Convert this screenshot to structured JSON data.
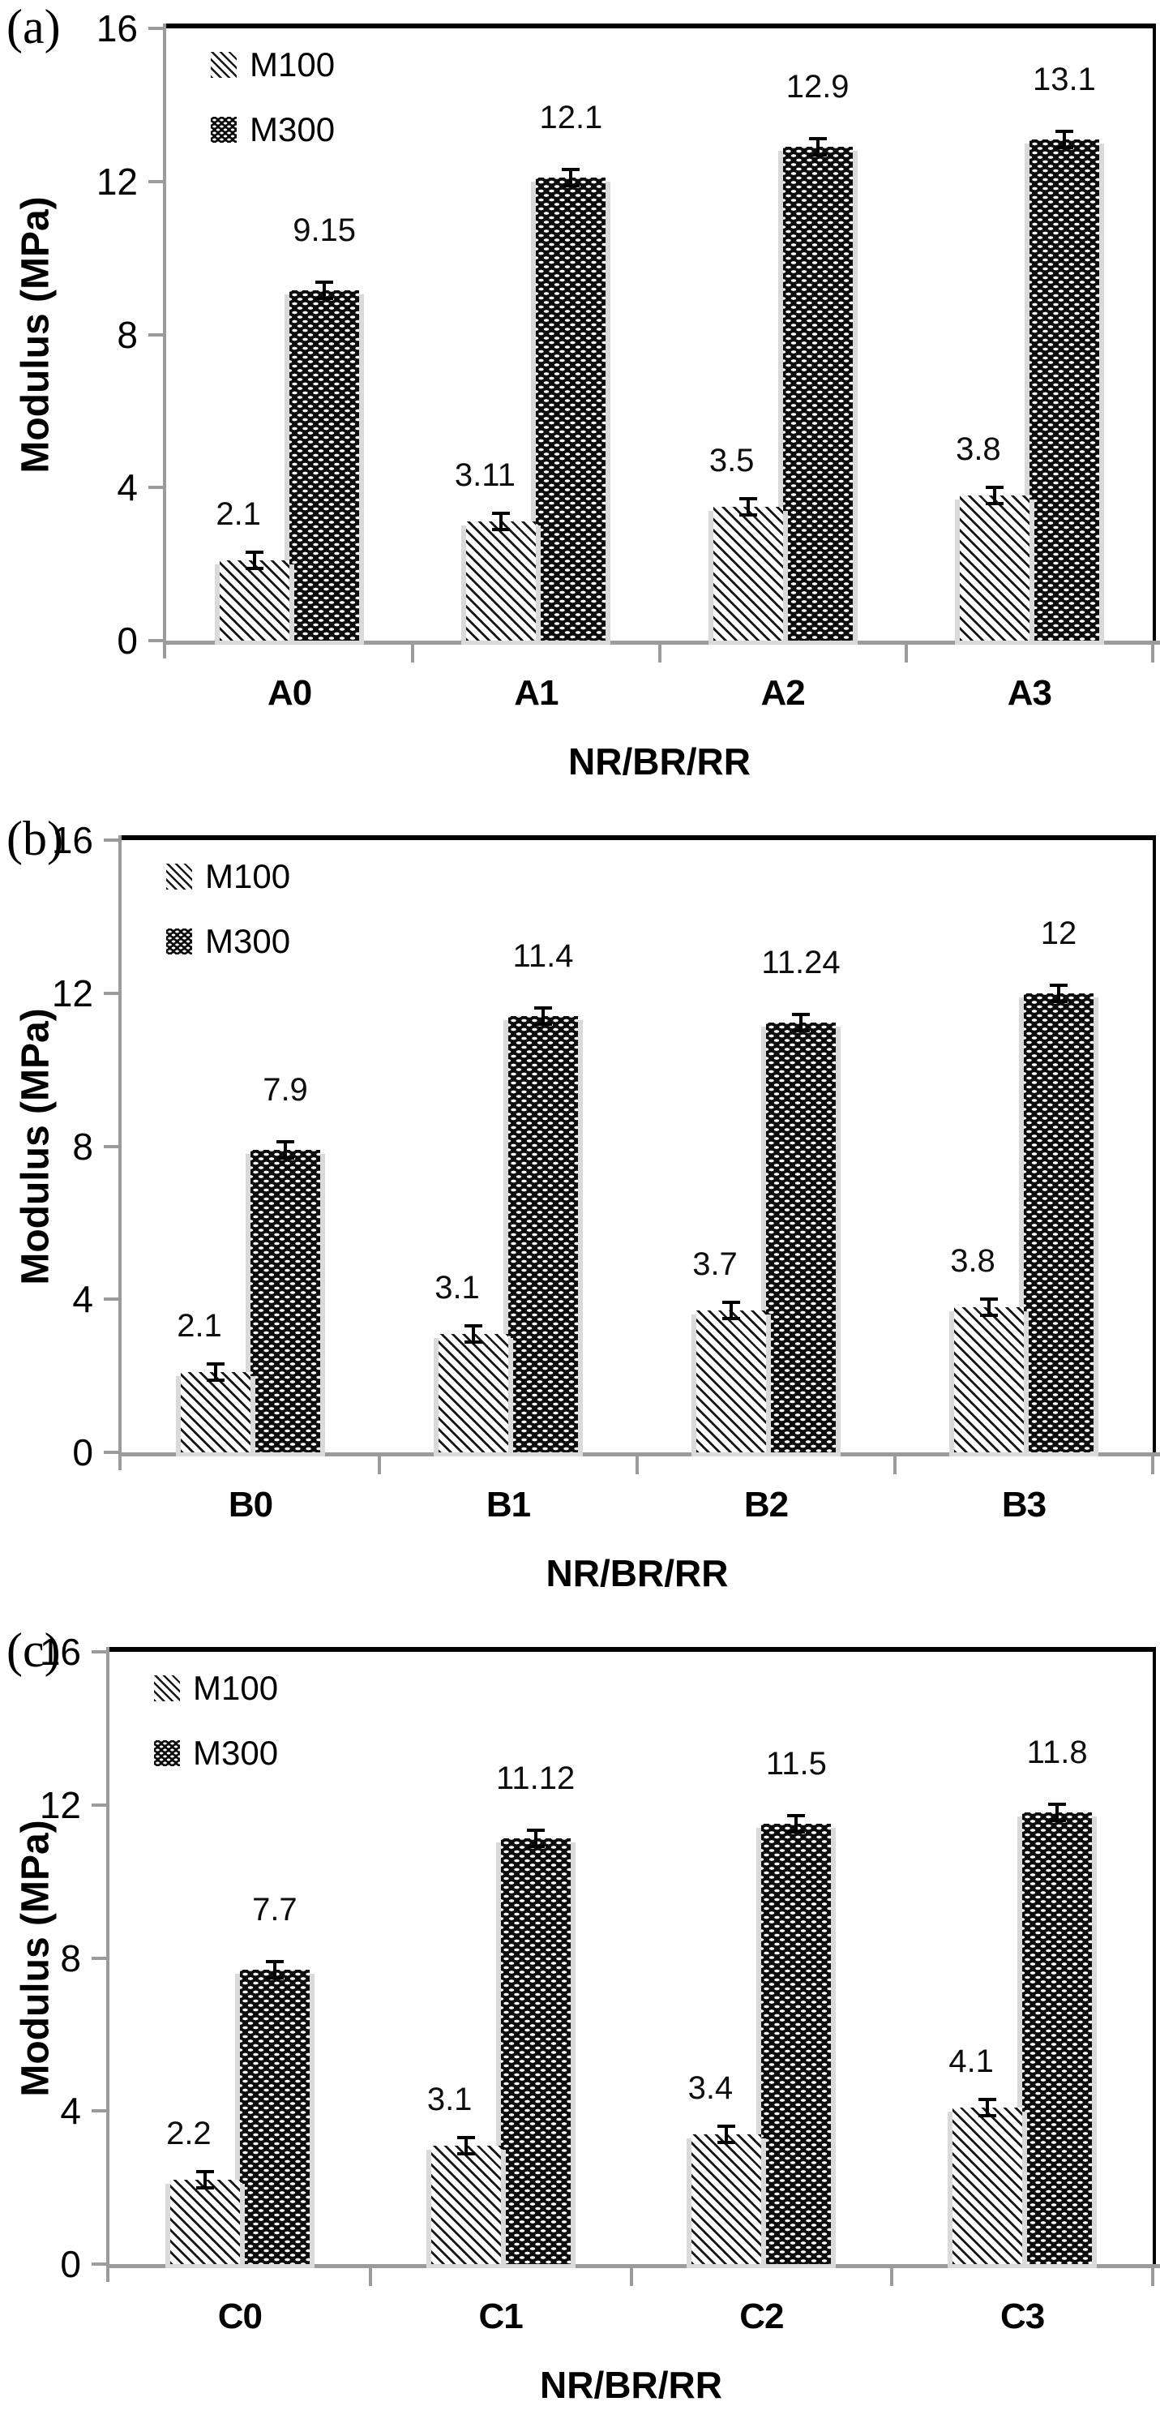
{
  "figure_type": "three-panel grouped bar chart figure",
  "colors": {
    "text": "#000000",
    "axis_gray": "#9b9b9b",
    "frame_black": "#000000",
    "bar_dark": "#0c0c0c",
    "bar_stripe": "#161616",
    "bar_shadow": "#dadada",
    "background": "#ffffff"
  },
  "chart_data": [
    {
      "type": "bar",
      "panel_tag": "(a)",
      "categories": [
        "A0",
        "A1",
        "A2",
        "A3"
      ],
      "series": [
        {
          "name": "M100",
          "pattern": "diagonal-stripes",
          "values": [
            2.1,
            3.11,
            3.5,
            3.8
          ],
          "labels": [
            "2.1",
            "3.11",
            "3.5",
            "3.8"
          ]
        },
        {
          "name": "M300",
          "pattern": "dark-white-dashes",
          "values": [
            9.15,
            12.1,
            12.9,
            13.1
          ],
          "labels": [
            "9.15",
            "12.1",
            "12.9",
            "13.1"
          ]
        }
      ],
      "xlabel": "NR/BR/RR",
      "ylabel": "Modulus (MPa)",
      "ylim": [
        0,
        16
      ],
      "yticks": [
        0,
        4,
        8,
        12,
        16
      ],
      "legend_position": "top-left-inside",
      "error_bars": true,
      "grid": false
    },
    {
      "type": "bar",
      "panel_tag": "(b)",
      "categories": [
        "B0",
        "B1",
        "B2",
        "B3"
      ],
      "series": [
        {
          "name": "M100",
          "pattern": "diagonal-stripes",
          "values": [
            2.1,
            3.1,
            3.7,
            3.8
          ],
          "labels": [
            "2.1",
            "3.1",
            "3.7",
            "3.8"
          ]
        },
        {
          "name": "M300",
          "pattern": "dark-white-dashes",
          "values": [
            7.9,
            11.4,
            11.24,
            12
          ],
          "labels": [
            "7.9",
            "11.4",
            "11.24",
            "12"
          ]
        }
      ],
      "xlabel": "NR/BR/RR",
      "ylabel": "Modulus (MPa)",
      "ylim": [
        0,
        16
      ],
      "yticks": [
        0,
        4,
        8,
        12,
        16
      ],
      "legend_position": "top-left-inside",
      "error_bars": true,
      "grid": false
    },
    {
      "type": "bar",
      "panel_tag": "(c)",
      "categories": [
        "C0",
        "C1",
        "C2",
        "C3"
      ],
      "series": [
        {
          "name": "M100",
          "pattern": "diagonal-stripes",
          "values": [
            2.2,
            3.1,
            3.4,
            4.1
          ],
          "labels": [
            "2.2",
            "3.1",
            "3.4",
            "4.1"
          ]
        },
        {
          "name": "M300",
          "pattern": "dark-white-dashes",
          "values": [
            7.7,
            11.12,
            11.5,
            11.8
          ],
          "labels": [
            "7.7",
            "11.12",
            "11.5",
            "11.8"
          ]
        }
      ],
      "xlabel": "NR/BR/RR",
      "ylabel": "Modulus (MPa)",
      "ylim": [
        0,
        16
      ],
      "yticks": [
        0,
        4,
        8,
        12,
        16
      ],
      "legend_position": "top-left-inside",
      "error_bars": true,
      "grid": false
    }
  ]
}
